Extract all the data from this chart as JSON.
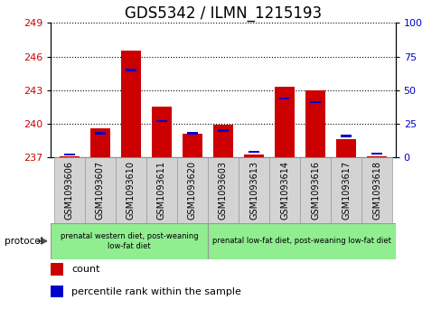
{
  "title": "GDS5342 / ILMN_1215193",
  "samples": [
    "GSM1093606",
    "GSM1093607",
    "GSM1093610",
    "GSM1093611",
    "GSM1093620",
    "GSM1093603",
    "GSM1093613",
    "GSM1093614",
    "GSM1093616",
    "GSM1093617",
    "GSM1093618"
  ],
  "count_values": [
    237.1,
    239.6,
    246.5,
    241.5,
    239.1,
    239.9,
    237.3,
    243.3,
    243.0,
    238.6,
    237.1
  ],
  "percentile_values": [
    2,
    18,
    65,
    27,
    18,
    20,
    4,
    44,
    41,
    16,
    3
  ],
  "ylim_left": [
    237,
    249
  ],
  "ylim_right": [
    0,
    100
  ],
  "yticks_left": [
    237,
    240,
    243,
    246,
    249
  ],
  "yticks_right": [
    0,
    25,
    50,
    75,
    100
  ],
  "bar_color_red": "#cc0000",
  "bar_color_blue": "#0000cc",
  "bar_width": 0.65,
  "bg_color": "#ffffff",
  "group1_label": "prenatal western diet, post-weaning\nlow-fat diet",
  "group2_label": "prenatal low-fat diet, post-weaning low-fat diet",
  "group1_count": 5,
  "group2_count": 6,
  "protocol_label": "protocol",
  "legend_count": "count",
  "legend_percentile": "percentile rank within the sample",
  "tick_color_left": "#cc0000",
  "tick_color_right": "#0000cc",
  "title_fontsize": 12,
  "tick_fontsize": 8,
  "xticklabel_fontsize": 7,
  "green_color": "#90ee90",
  "gray_color": "#d3d3d3",
  "gray_border": "#999999"
}
